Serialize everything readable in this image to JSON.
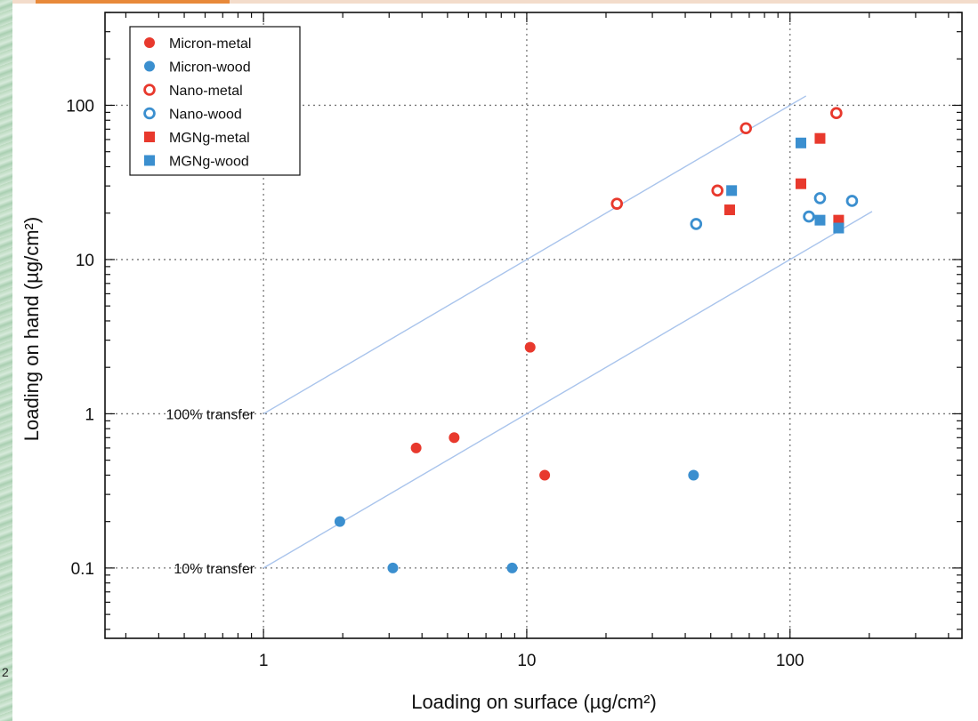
{
  "chart_data": {
    "type": "scatter",
    "xscale": "log",
    "yscale": "log",
    "xlim": [
      0.25,
      450
    ],
    "ylim": [
      0.035,
      400
    ],
    "xlabel": "Loading on surface (µg/cm²)",
    "ylabel": "Loading on hand (µg/cm²)",
    "xticks": [
      1,
      10,
      100
    ],
    "xtick_labels": [
      "1",
      "10",
      "100"
    ],
    "yticks": [
      0.1,
      1,
      10,
      100
    ],
    "ytick_labels": [
      "0.1",
      "1",
      "10",
      "100"
    ],
    "grid": true,
    "legend_position": "top-left",
    "series": [
      {
        "name": "Micron-metal",
        "marker": "filled-circle",
        "color": "#e8392d",
        "points": [
          [
            3.8,
            0.6
          ],
          [
            5.3,
            0.7
          ],
          [
            10.3,
            2.7
          ],
          [
            11.7,
            0.4
          ]
        ]
      },
      {
        "name": "Micron-wood",
        "marker": "filled-circle",
        "color": "#3b8fcf",
        "points": [
          [
            1.95,
            0.2
          ],
          [
            3.1,
            0.1
          ],
          [
            8.8,
            0.1
          ],
          [
            43,
            0.4
          ]
        ]
      },
      {
        "name": "Nano-metal",
        "marker": "open-circle",
        "color": "#e8392d",
        "points": [
          [
            22,
            23
          ],
          [
            53,
            28
          ],
          [
            68,
            71
          ],
          [
            150,
            89
          ]
        ]
      },
      {
        "name": "Nano-wood",
        "marker": "open-circle",
        "color": "#3b8fcf",
        "points": [
          [
            44,
            17
          ],
          [
            118,
            19
          ],
          [
            130,
            25
          ],
          [
            172,
            24
          ]
        ]
      },
      {
        "name": "MGNg-metal",
        "marker": "filled-square",
        "color": "#e8392d",
        "points": [
          [
            59,
            21
          ],
          [
            110,
            31
          ],
          [
            130,
            61
          ],
          [
            153,
            18
          ]
        ]
      },
      {
        "name": "MGNg-wood",
        "marker": "filled-square",
        "color": "#3b8fcf",
        "points": [
          [
            60,
            28
          ],
          [
            110,
            57
          ],
          [
            130,
            18
          ],
          [
            153,
            16
          ]
        ]
      }
    ],
    "reference_lines": [
      {
        "label": "100% transfer",
        "slope": 1.0,
        "x_range": [
          1,
          115
        ],
        "color": "#a9c4ec"
      },
      {
        "label": "10% transfer",
        "slope": 0.1,
        "x_range": [
          1,
          205
        ],
        "color": "#a9c4ec"
      }
    ]
  },
  "page": {
    "stray_text": "2"
  }
}
